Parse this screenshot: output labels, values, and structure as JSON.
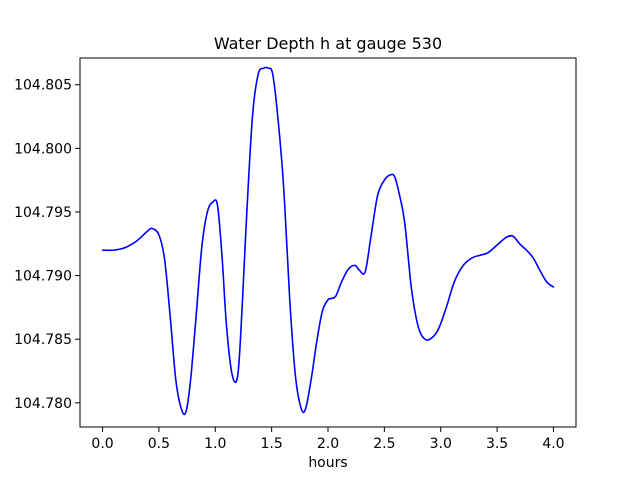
{
  "chart_data": {
    "type": "line",
    "title": "Water Depth h at gauge 530",
    "xlabel": "hours",
    "ylabel": "",
    "xlim": [
      -0.2,
      4.2
    ],
    "ylim": [
      104.7781,
      104.8071
    ],
    "x_ticks": [
      0.0,
      0.5,
      1.0,
      1.5,
      2.0,
      2.5,
      3.0,
      3.5,
      4.0
    ],
    "x_tick_labels": [
      "0.0",
      "0.5",
      "1.0",
      "1.5",
      "2.0",
      "2.5",
      "3.0",
      "3.5",
      "4.0"
    ],
    "y_ticks": [
      104.78,
      104.785,
      104.79,
      104.795,
      104.8,
      104.805
    ],
    "y_tick_labels": [
      "104.780",
      "104.785",
      "104.790",
      "104.795",
      "104.800",
      "104.805"
    ],
    "grid": false,
    "legend": "none",
    "series": [
      {
        "color": "#0000ff",
        "x": [
          0.0,
          0.1,
          0.2,
          0.3,
          0.4,
          0.44,
          0.5,
          0.55,
          0.6,
          0.65,
          0.7,
          0.74,
          0.78,
          0.83,
          0.88,
          0.93,
          0.98,
          1.02,
          1.06,
          1.1,
          1.15,
          1.2,
          1.24,
          1.28,
          1.33,
          1.38,
          1.43,
          1.47,
          1.51,
          1.56,
          1.61,
          1.66,
          1.71,
          1.76,
          1.8,
          1.85,
          1.9,
          1.95,
          2.0,
          2.03,
          2.07,
          2.12,
          2.18,
          2.24,
          2.28,
          2.33,
          2.38,
          2.44,
          2.5,
          2.55,
          2.59,
          2.63,
          2.68,
          2.74,
          2.8,
          2.86,
          2.92,
          2.98,
          3.05,
          3.12,
          3.2,
          3.28,
          3.35,
          3.42,
          3.5,
          3.58,
          3.64,
          3.7,
          3.76,
          3.82,
          3.88,
          3.94,
          4.0
        ],
        "y": [
          104.792,
          104.792,
          104.7922,
          104.7927,
          104.7935,
          104.7937,
          104.7932,
          104.7913,
          104.7868,
          104.7818,
          104.7795,
          104.7793,
          104.7817,
          104.7868,
          104.7922,
          104.795,
          104.7958,
          104.7955,
          104.7915,
          104.786,
          104.7822,
          104.7822,
          104.7878,
          104.795,
          104.8025,
          104.8058,
          104.8063,
          104.8063,
          104.8058,
          104.802,
          104.7965,
          104.7882,
          104.7822,
          104.7796,
          104.7795,
          104.7818,
          104.7848,
          104.7872,
          104.7881,
          104.7882,
          104.7884,
          104.7895,
          104.7905,
          104.7908,
          104.7904,
          104.7903,
          104.793,
          104.7963,
          104.7975,
          104.7979,
          104.7978,
          104.7965,
          104.7942,
          104.789,
          104.786,
          104.785,
          104.7851,
          104.7858,
          104.7875,
          104.7895,
          104.7908,
          104.7914,
          104.7916,
          104.7918,
          104.7924,
          104.793,
          104.7931,
          104.7925,
          104.792,
          104.7914,
          104.7904,
          104.7895,
          104.7891
        ]
      }
    ]
  }
}
